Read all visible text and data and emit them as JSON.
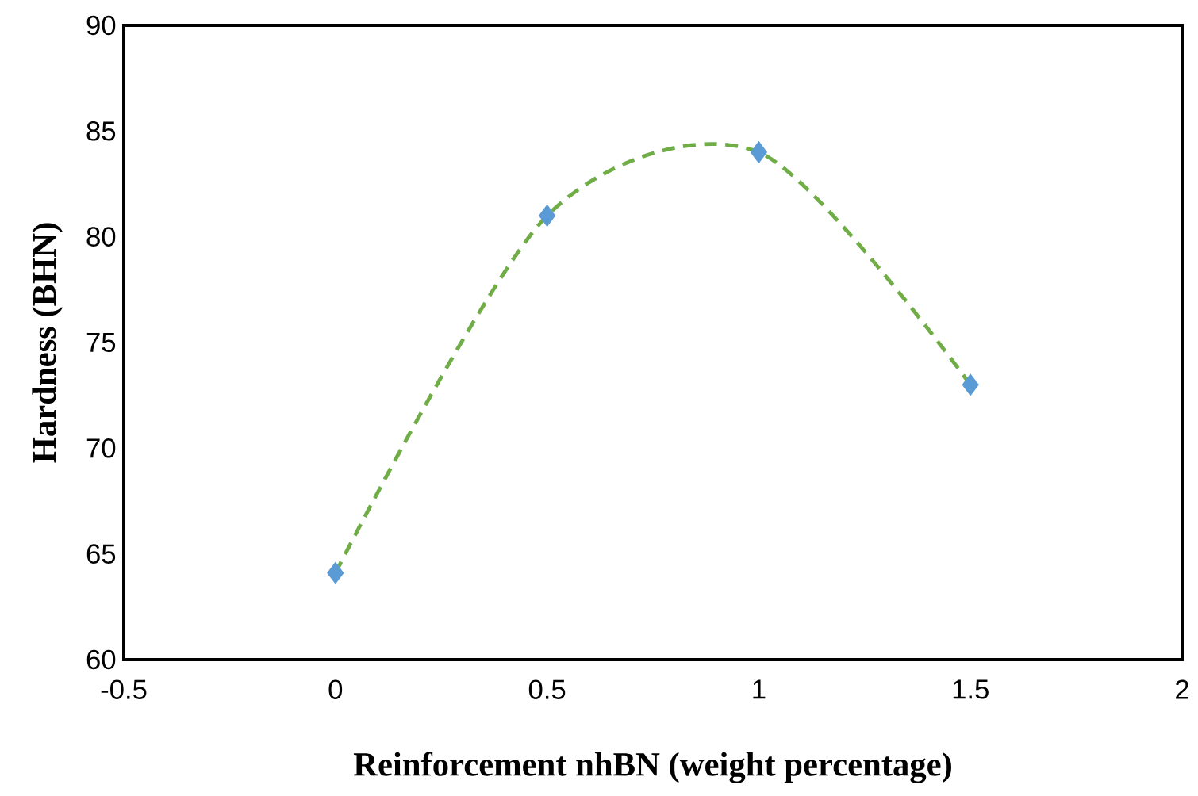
{
  "chart_data": {
    "type": "scatter",
    "xlabel": "Reinforcement nhBN (weight percentage)",
    "ylabel": "Hardness (BHN)",
    "x": [
      0,
      0.5,
      1,
      1.5
    ],
    "series": [
      {
        "type": "line",
        "color": "#70ad47",
        "line_style": "dashed",
        "marker": "none",
        "values": [
          64.1,
          81,
          84,
          73
        ]
      },
      {
        "color": "#5b9bd5",
        "marker": "diamond",
        "values": [
          64.1,
          81,
          84,
          73
        ]
      }
    ],
    "xlim": [
      -0.5,
      2
    ],
    "xticks": [
      -0.5,
      0,
      0.5,
      1,
      1.5,
      2
    ],
    "ylim": [
      60,
      90
    ],
    "yticks": [
      60,
      65,
      70,
      75,
      80,
      85,
      90
    ],
    "grid": false
  }
}
